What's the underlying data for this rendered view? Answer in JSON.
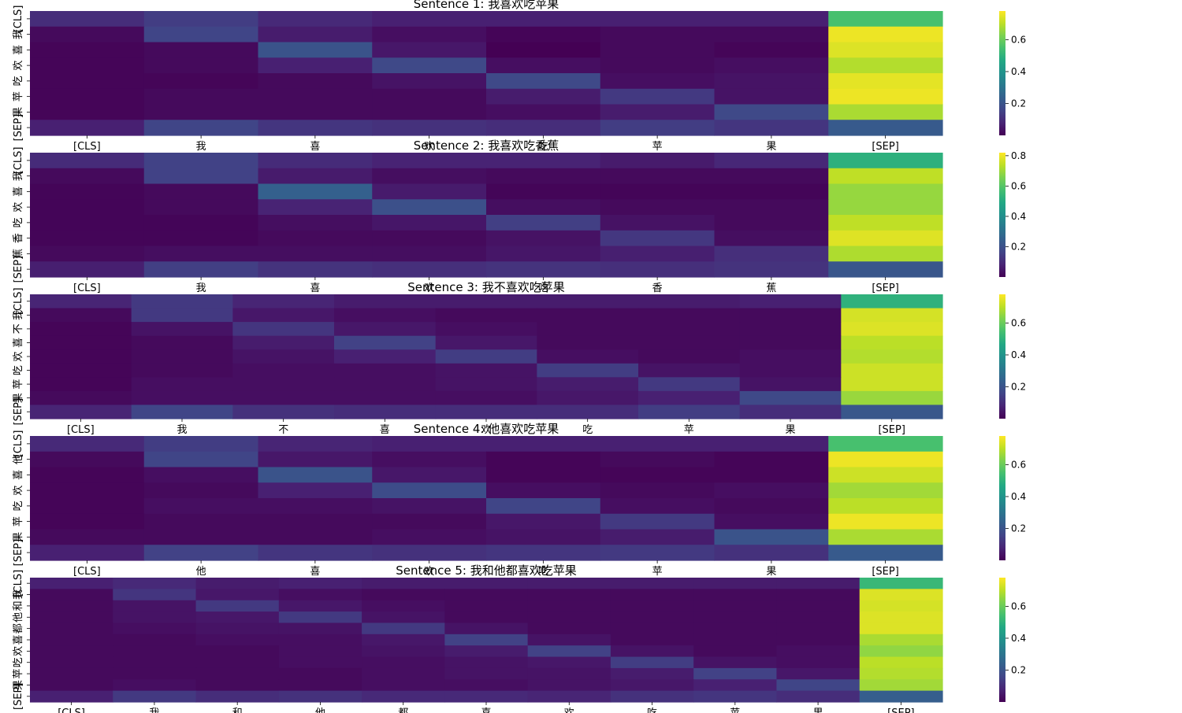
{
  "colormap": "viridis",
  "chart_data": [
    {
      "type": "heatmap",
      "title": "Sentence 1: 我喜欢吃苹果",
      "x_labels": [
        "[CLS]",
        "我",
        "喜",
        "欢",
        "吃",
        "苹",
        "果",
        "[SEP]"
      ],
      "y_labels": [
        "[CLS]",
        "我",
        "喜",
        "欢",
        "吃",
        "苹",
        "果",
        "[SEP]"
      ],
      "colorbar": {
        "ticks": [
          "0.2",
          "0.4",
          "0.6"
        ],
        "range": [
          0.0,
          0.78
        ]
      },
      "values": [
        [
          0.1,
          0.14,
          0.09,
          0.07,
          0.07,
          0.07,
          0.07,
          0.55
        ],
        [
          0.02,
          0.16,
          0.06,
          0.03,
          0.01,
          0.02,
          0.02,
          0.76
        ],
        [
          0.01,
          0.02,
          0.2,
          0.05,
          0.0,
          0.02,
          0.01,
          0.74
        ],
        [
          0.01,
          0.02,
          0.07,
          0.17,
          0.03,
          0.02,
          0.03,
          0.69
        ],
        [
          0.01,
          0.01,
          0.02,
          0.04,
          0.17,
          0.03,
          0.04,
          0.75
        ],
        [
          0.01,
          0.02,
          0.02,
          0.02,
          0.06,
          0.13,
          0.04,
          0.76
        ],
        [
          0.01,
          0.02,
          0.02,
          0.02,
          0.03,
          0.06,
          0.17,
          0.68
        ],
        [
          0.07,
          0.16,
          0.12,
          0.11,
          0.1,
          0.14,
          0.12,
          0.22
        ]
      ]
    },
    {
      "type": "heatmap",
      "title": "Sentence 2: 我喜欢吃香蕉",
      "x_labels": [
        "[CLS]",
        "我",
        "喜",
        "欢",
        "吃",
        "香",
        "蕉",
        "[SEP]"
      ],
      "y_labels": [
        "[CLS]",
        "我",
        "喜",
        "欢",
        "吃",
        "香",
        "蕉",
        "[SEP]"
      ],
      "colorbar": {
        "ticks": [
          "0.2",
          "0.4",
          "0.6",
          "0.8"
        ],
        "range": [
          0.0,
          0.82
        ]
      },
      "values": [
        [
          0.1,
          0.16,
          0.1,
          0.08,
          0.08,
          0.06,
          0.09,
          0.52
        ],
        [
          0.02,
          0.16,
          0.06,
          0.03,
          0.02,
          0.02,
          0.02,
          0.74
        ],
        [
          0.01,
          0.02,
          0.25,
          0.06,
          0.01,
          0.01,
          0.01,
          0.69
        ],
        [
          0.01,
          0.02,
          0.08,
          0.2,
          0.03,
          0.02,
          0.02,
          0.69
        ],
        [
          0.01,
          0.01,
          0.03,
          0.05,
          0.15,
          0.04,
          0.02,
          0.74
        ],
        [
          0.01,
          0.01,
          0.02,
          0.02,
          0.04,
          0.13,
          0.03,
          0.78
        ],
        [
          0.02,
          0.03,
          0.03,
          0.03,
          0.05,
          0.07,
          0.11,
          0.72
        ],
        [
          0.07,
          0.15,
          0.12,
          0.11,
          0.12,
          0.11,
          0.12,
          0.22
        ]
      ]
    },
    {
      "type": "heatmap",
      "title": "Sentence 3: 我不喜欢吃苹果",
      "x_labels": [
        "[CLS]",
        "我",
        "不",
        "喜",
        "欢",
        "吃",
        "苹",
        "果",
        "[SEP]"
      ],
      "y_labels": [
        "[CLS]",
        "我",
        "不",
        "喜",
        "欢",
        "吃",
        "苹",
        "果",
        "[SEP]"
      ],
      "colorbar": {
        "ticks": [
          "0.2",
          "0.4",
          "0.6"
        ],
        "range": [
          0.0,
          0.78
        ]
      },
      "values": [
        [
          0.08,
          0.13,
          0.08,
          0.06,
          0.06,
          0.06,
          0.06,
          0.07,
          0.5
        ],
        [
          0.02,
          0.13,
          0.05,
          0.03,
          0.02,
          0.02,
          0.02,
          0.02,
          0.73
        ],
        [
          0.01,
          0.04,
          0.12,
          0.05,
          0.03,
          0.02,
          0.02,
          0.02,
          0.74
        ],
        [
          0.01,
          0.02,
          0.06,
          0.15,
          0.05,
          0.02,
          0.02,
          0.02,
          0.7
        ],
        [
          0.01,
          0.02,
          0.04,
          0.07,
          0.14,
          0.03,
          0.02,
          0.03,
          0.69
        ],
        [
          0.01,
          0.02,
          0.03,
          0.03,
          0.04,
          0.14,
          0.04,
          0.03,
          0.72
        ],
        [
          0.01,
          0.03,
          0.03,
          0.03,
          0.04,
          0.06,
          0.13,
          0.04,
          0.72
        ],
        [
          0.02,
          0.03,
          0.03,
          0.03,
          0.03,
          0.05,
          0.07,
          0.17,
          0.66
        ],
        [
          0.08,
          0.16,
          0.11,
          0.1,
          0.1,
          0.1,
          0.14,
          0.1,
          0.21
        ]
      ]
    },
    {
      "type": "heatmap",
      "title": "Sentence 4: 他喜欢吃苹果",
      "x_labels": [
        "[CLS]",
        "他",
        "喜",
        "欢",
        "吃",
        "苹",
        "果",
        "[SEP]"
      ],
      "y_labels": [
        "[CLS]",
        "他",
        "喜",
        "欢",
        "吃",
        "苹",
        "果",
        "[SEP]"
      ],
      "colorbar": {
        "ticks": [
          "0.2",
          "0.4",
          "0.6"
        ],
        "range": [
          0.0,
          0.78
        ]
      },
      "values": [
        [
          0.09,
          0.14,
          0.08,
          0.07,
          0.07,
          0.07,
          0.07,
          0.55
        ],
        [
          0.02,
          0.16,
          0.05,
          0.03,
          0.01,
          0.02,
          0.01,
          0.76
        ],
        [
          0.01,
          0.03,
          0.2,
          0.05,
          0.01,
          0.01,
          0.01,
          0.72
        ],
        [
          0.01,
          0.02,
          0.07,
          0.18,
          0.03,
          0.02,
          0.03,
          0.67
        ],
        [
          0.01,
          0.03,
          0.03,
          0.04,
          0.16,
          0.03,
          0.02,
          0.7
        ],
        [
          0.01,
          0.02,
          0.02,
          0.02,
          0.05,
          0.13,
          0.03,
          0.76
        ],
        [
          0.02,
          0.02,
          0.02,
          0.03,
          0.04,
          0.06,
          0.2,
          0.68
        ],
        [
          0.07,
          0.15,
          0.12,
          0.11,
          0.12,
          0.13,
          0.11,
          0.22
        ]
      ]
    },
    {
      "type": "heatmap",
      "title": "Sentence 5: 我和他都喜欢吃苹果",
      "x_labels": [
        "[CLS]",
        "我",
        "和",
        "他",
        "都",
        "喜",
        "欢",
        "吃",
        "苹",
        "果",
        "[SEP]"
      ],
      "y_labels": [
        "[CLS]",
        "我",
        "和",
        "他",
        "都",
        "喜",
        "欢",
        "吃",
        "苹",
        "果",
        "[SEP]"
      ],
      "colorbar": {
        "ticks": [
          "0.2",
          "0.4",
          "0.6"
        ],
        "range": [
          0.0,
          0.78
        ]
      },
      "values": [
        [
          0.07,
          0.09,
          0.06,
          0.07,
          0.06,
          0.06,
          0.06,
          0.06,
          0.06,
          0.06,
          0.52
        ],
        [
          0.02,
          0.12,
          0.05,
          0.03,
          0.02,
          0.02,
          0.02,
          0.02,
          0.02,
          0.02,
          0.74
        ],
        [
          0.02,
          0.04,
          0.13,
          0.05,
          0.03,
          0.02,
          0.02,
          0.02,
          0.02,
          0.02,
          0.73
        ],
        [
          0.02,
          0.04,
          0.05,
          0.13,
          0.04,
          0.02,
          0.02,
          0.02,
          0.02,
          0.02,
          0.74
        ],
        [
          0.02,
          0.03,
          0.04,
          0.04,
          0.13,
          0.04,
          0.02,
          0.02,
          0.02,
          0.02,
          0.74
        ],
        [
          0.02,
          0.02,
          0.03,
          0.03,
          0.05,
          0.15,
          0.04,
          0.02,
          0.02,
          0.02,
          0.68
        ],
        [
          0.02,
          0.02,
          0.02,
          0.03,
          0.04,
          0.06,
          0.15,
          0.04,
          0.02,
          0.03,
          0.65
        ],
        [
          0.02,
          0.02,
          0.02,
          0.03,
          0.03,
          0.04,
          0.05,
          0.14,
          0.04,
          0.03,
          0.7
        ],
        [
          0.02,
          0.02,
          0.02,
          0.02,
          0.03,
          0.04,
          0.04,
          0.06,
          0.15,
          0.05,
          0.69
        ],
        [
          0.02,
          0.03,
          0.02,
          0.02,
          0.03,
          0.03,
          0.04,
          0.05,
          0.07,
          0.16,
          0.67
        ],
        [
          0.07,
          0.13,
          0.1,
          0.11,
          0.09,
          0.09,
          0.08,
          0.11,
          0.12,
          0.1,
          0.23
        ]
      ]
    }
  ]
}
